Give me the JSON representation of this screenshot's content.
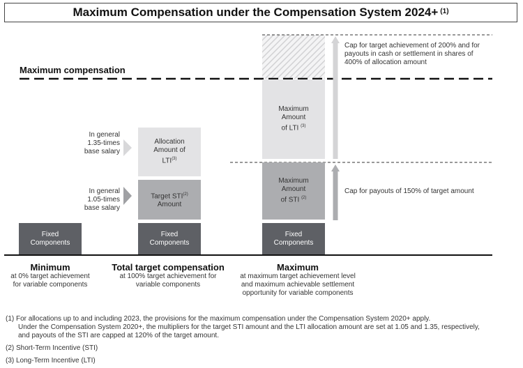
{
  "title": "Maximum Compensation under the Compensation System 2024+",
  "title_footnote": "(1)",
  "max_comp_label": "Maximum compensation",
  "fixed_label": "Fixed Components",
  "target_sti_label": "Target STI",
  "target_sti_sup": "(2)",
  "target_sti_label2": "Amount",
  "allocation_label_1": "Allocation",
  "allocation_label_2": "Amount of",
  "allocation_label_3": "LTI",
  "allocation_sup": "(3)",
  "max_lti_1": "Maximum",
  "max_lti_2": "Amount",
  "max_lti_3": "of LTI",
  "max_lti_sup": "(3)",
  "max_sti_1": "Maximum",
  "max_sti_2": "Amount",
  "max_sti_3": "of STI",
  "max_sti_sup": "(2)",
  "multiplier_sti": [
    "In general",
    "1.05-times",
    "base salary"
  ],
  "multiplier_lti": [
    "In general",
    "1.35-times",
    "base salary"
  ],
  "cap_lti": [
    "Cap for target achievement of 200% and for",
    "payouts in cash or settlement in shares of",
    "400% of allocation amount"
  ],
  "cap_sti": "Cap for payouts of 150% of target amount",
  "columns": [
    {
      "title": "Minimum",
      "sub": [
        "at 0% target achievement",
        "for variable components"
      ]
    },
    {
      "title": "Total target compensation",
      "sub": [
        "at 100% target achievement for",
        "variable components"
      ]
    },
    {
      "title": "Maximum",
      "sub": [
        "at maximum target achievement level",
        "and maximum achievable settlement",
        "opportunity for variable components"
      ]
    }
  ],
  "footnotes": [
    "(1)  For allocations up to and including 2023, the provisions for the maximum compensation under the Compensation System 2020+ apply.",
    "Under the Compensation System 2020+, the multipliers for the target STI amount and the LTI allocation amount are set at 1.05 and 1.35, respectively,",
    "and payouts of the STI are capped at 120% of the target amount.",
    "(2)  Short-Term Incentive (STI)",
    "(3)  Long-Term Incentive (LTI)"
  ],
  "colors": {
    "dark": "#5e6065",
    "mid": "#acadb0",
    "light": "#e3e3e5",
    "arrow": "#d4d4d6"
  }
}
